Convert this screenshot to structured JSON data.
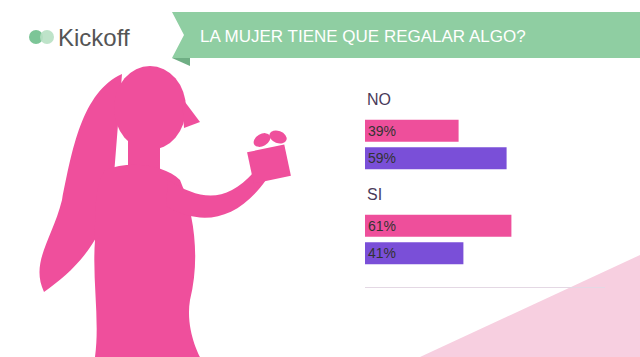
{
  "logo": "Kickoff",
  "chart_data": {
    "type": "bar",
    "orientation": "horizontal",
    "title": "LA MUJER TIENE QUE REGALAR ALGO?",
    "categories": [
      "NO",
      "SI"
    ],
    "series": [
      {
        "color": "#ee4f9b",
        "values": [
          39,
          61
        ],
        "value_labels": [
          "39%",
          "61%"
        ]
      },
      {
        "color": "#7a4fd8",
        "values": [
          59,
          41
        ],
        "value_labels": [
          "59%",
          "41%"
        ]
      }
    ],
    "xlim": [
      0,
      100
    ],
    "data_labels": true,
    "tick_labels": false,
    "grid": false
  }
}
